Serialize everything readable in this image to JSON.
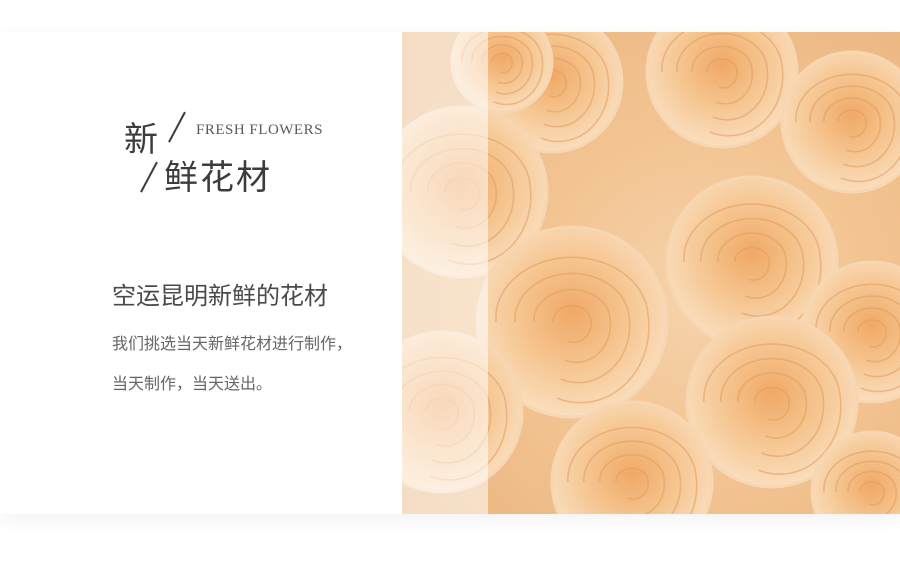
{
  "hero": {
    "title_first_char": "新",
    "title_rest": "鲜花材",
    "title_en": "FRESH FLOWERS",
    "headline": "空运昆明新鲜的花材",
    "description_line1": "我们挑选当天新鲜花材进行制作，",
    "description_line2": "当天制作，当天送出。"
  },
  "image": {
    "subject": "peach-roses-photo"
  },
  "colors": {
    "text_dark": "#3c3c3c",
    "text_body": "#666666",
    "rose_peach": "#f3c593",
    "rose_center": "#e89a5a"
  }
}
